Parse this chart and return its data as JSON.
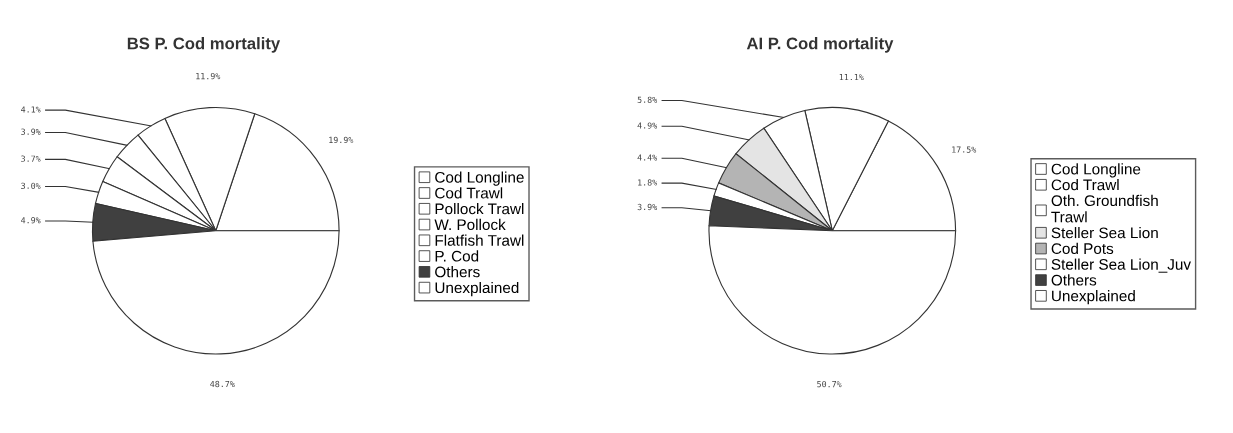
{
  "chart_data": [
    {
      "type": "pie",
      "title": "BS P. Cod mortality",
      "legend": "right",
      "value_labels": [
        "19.9%",
        "11.9%",
        "4.1%",
        "3.9%",
        "3.7%",
        "3.0%",
        "4.9%",
        "48.7%"
      ],
      "categories": [
        "Cod Longline",
        "Cod Trawl",
        "Pollock Trawl",
        "W. Pollock",
        "Flatfish Trawl",
        "P. Cod",
        "Others",
        "Unexplained"
      ],
      "values": [
        19.9,
        11.9,
        4.1,
        3.9,
        3.7,
        3.0,
        4.9,
        48.7
      ],
      "colors": [
        "#ffffff",
        "#ffffff",
        "#ffffff",
        "#ffffff",
        "#ffffff",
        "#ffffff",
        "#404040",
        "#ffffff"
      ]
    },
    {
      "type": "pie",
      "title": "AI P. Cod mortality",
      "legend": "right",
      "value_labels": [
        "17.5%",
        "11.1%",
        "5.8%",
        "4.9%",
        "4.4%",
        "1.8%",
        "3.9%",
        "50.7%"
      ],
      "categories": [
        "Cod Longline",
        "Cod Trawl",
        "Oth. Groundfish\nTrawl",
        "Steller Sea Lion",
        "Cod Pots",
        "Steller Sea Lion_Juv",
        "Others",
        "Unexplained"
      ],
      "values": [
        17.5,
        11.1,
        5.8,
        4.9,
        4.4,
        1.8,
        3.9,
        50.7
      ],
      "colors": [
        "#ffffff",
        "#ffffff",
        "#ffffff",
        "#e4e4e4",
        "#b4b4b4",
        "#ffffff",
        "#404040",
        "#ffffff"
      ]
    }
  ]
}
